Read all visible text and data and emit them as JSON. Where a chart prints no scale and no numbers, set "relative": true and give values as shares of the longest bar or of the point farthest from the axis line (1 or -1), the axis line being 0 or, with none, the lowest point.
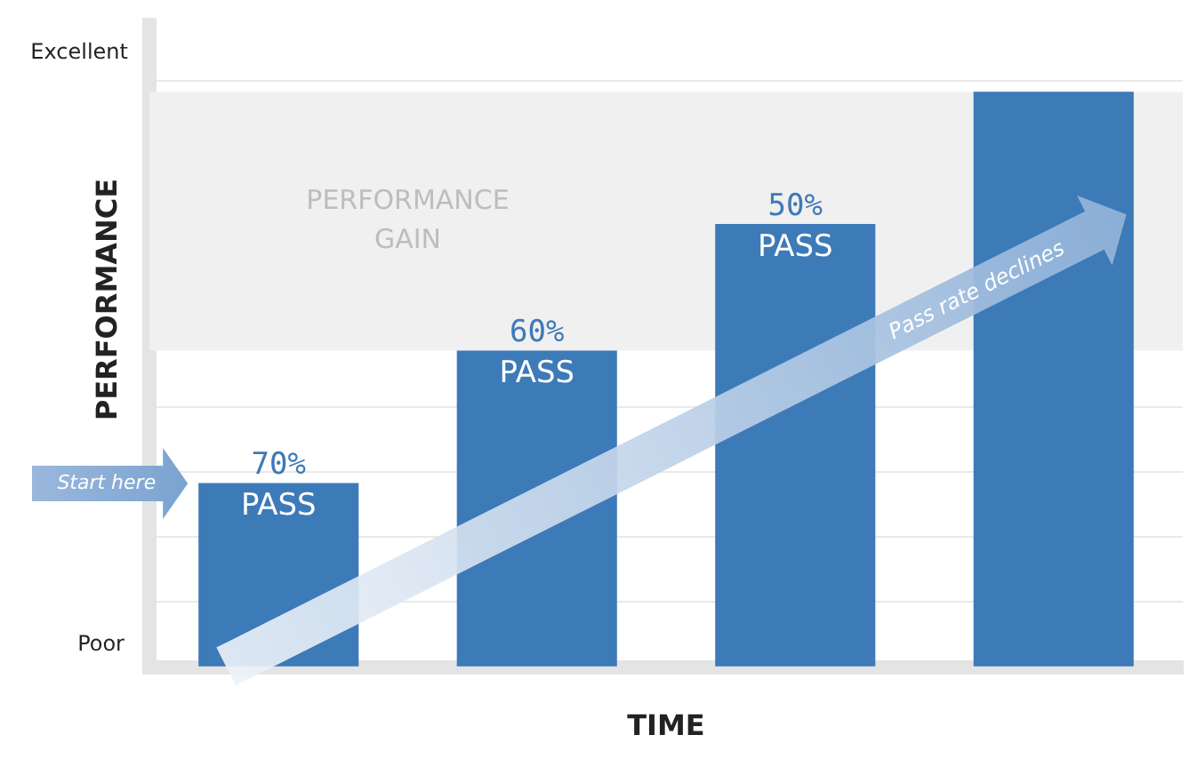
{
  "chart_data": {
    "type": "bar",
    "xlabel": "TIME",
    "ylabel": "PERFORMANCE",
    "categories": [
      null,
      null,
      null,
      null
    ],
    "relative": true,
    "values": [
      0.32,
      0.55,
      0.77,
      1
    ],
    "color": "#3d7ab8",
    "bands": [
      {
        "axis": "y",
        "from": 0.55,
        "to": 1,
        "label": "PERFORMANCE GAIN",
        "color": "#f0f0f0"
      }
    ],
    "annotations": [
      "Excellent",
      "Poor",
      "Start here",
      "Pass rate declines",
      {
        "text": "70% PASS",
        "y": 0.32
      },
      {
        "text": "60% PASS",
        "y": 0.55
      },
      {
        "text": "50% PASS",
        "y": 0.77
      }
    ],
    "grid": "y",
    "legend": false
  }
}
